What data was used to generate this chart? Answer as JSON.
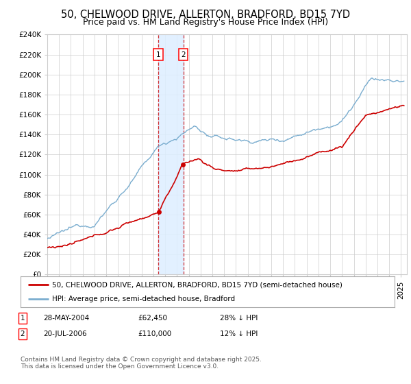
{
  "title": "50, CHELWOOD DRIVE, ALLERTON, BRADFORD, BD15 7YD",
  "subtitle": "Price paid vs. HM Land Registry's House Price Index (HPI)",
  "legend_line1": "50, CHELWOOD DRIVE, ALLERTON, BRADFORD, BD15 7YD (semi-detached house)",
  "legend_line2": "HPI: Average price, semi-detached house, Bradford",
  "footnote": "Contains HM Land Registry data © Crown copyright and database right 2025.\nThis data is licensed under the Open Government Licence v3.0.",
  "ylim": [
    0,
    240000
  ],
  "yticks": [
    0,
    20000,
    40000,
    60000,
    80000,
    100000,
    120000,
    140000,
    160000,
    180000,
    200000,
    220000,
    240000
  ],
  "ytick_labels": [
    "£0",
    "£20K",
    "£40K",
    "£60K",
    "£80K",
    "£100K",
    "£120K",
    "£140K",
    "£160K",
    "£180K",
    "£200K",
    "£220K",
    "£240K"
  ],
  "xlim_start": 1995.0,
  "xlim_end": 2025.5,
  "transaction1_x": 2004.41,
  "transaction1_price": 62450,
  "transaction1_date": "28-MAY-2004",
  "transaction1_hpi": "28% ↓ HPI",
  "transaction2_x": 2006.55,
  "transaction2_price": 110000,
  "transaction2_date": "20-JUL-2006",
  "transaction2_hpi": "12% ↓ HPI",
  "red_color": "#cc0000",
  "blue_color": "#7aadcf",
  "shade_color": "#ddeeff",
  "background_color": "#ffffff",
  "grid_color": "#cccccc",
  "title_fontsize": 10.5,
  "subtitle_fontsize": 9,
  "tick_fontsize": 7.5,
  "legend_fontsize": 7.5,
  "footnote_fontsize": 6.5
}
